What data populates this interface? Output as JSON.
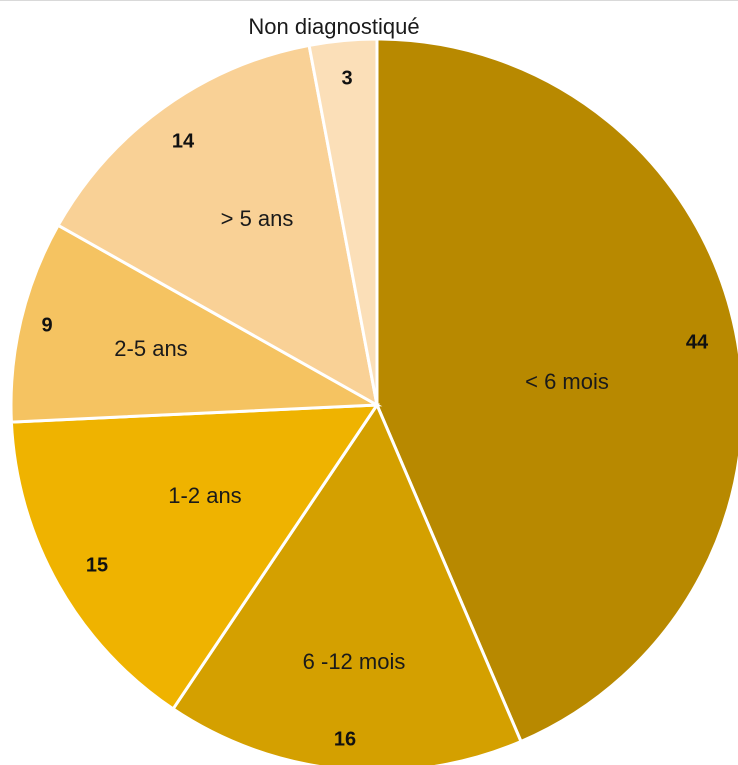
{
  "chart_data": {
    "type": "pie",
    "title": "",
    "start_angle_deg": 0,
    "direction": "clockwise",
    "slices": [
      {
        "label": "< 6 mois",
        "value": 44,
        "color": "#b88900"
      },
      {
        "label": "6 -12 mois",
        "value": 16,
        "color": "#d4a000"
      },
      {
        "label": "1-2 ans",
        "value": 15,
        "color": "#efb300"
      },
      {
        "label": "2-5 ans",
        "value": 9,
        "color": "#f5c361"
      },
      {
        "label": "> 5 ans",
        "value": 14,
        "color": "#f9d196"
      },
      {
        "label": "Non diagnostiqué",
        "value": 3,
        "color": "#fbdfb8"
      }
    ]
  }
}
